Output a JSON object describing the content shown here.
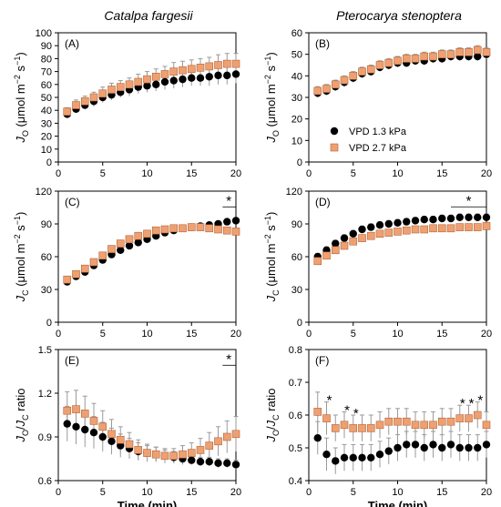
{
  "figure": {
    "column_titles": [
      "Catalpa fargesii",
      "Pterocarya stenoptera"
    ],
    "legend": {
      "entries": [
        "VPD 1.3 kPa",
        "VPD 2.7 kPa"
      ]
    },
    "colors": {
      "vpd_1_3": "#000000",
      "vpd_2_7": "#f0a070",
      "vpd_2_7_edge": "#b0653a",
      "error_bar": "#9a9a9a"
    }
  },
  "chart_data": [
    {
      "id": "A",
      "type": "scatter",
      "panel_label": "(A)",
      "species": "Catalpa fargesii",
      "ylabel": "J_O (μmol m⁻² s⁻¹)",
      "ylabel_parts": {
        "sym": "J",
        "sub": "O",
        "unit": "(μmol m",
        "exp1": "−2",
        "mid": " s",
        "exp2": "−1",
        "end": ")"
      },
      "xlabel": "",
      "xlim": [
        0,
        20
      ],
      "ylim": [
        0,
        100
      ],
      "xticks": [
        0,
        5,
        10,
        15,
        20
      ],
      "yticks": [
        0,
        10,
        20,
        30,
        40,
        50,
        60,
        70,
        80,
        90,
        100
      ],
      "show_legend": false,
      "x": [
        1,
        2,
        3,
        4,
        5,
        6,
        7,
        8,
        9,
        10,
        11,
        12,
        13,
        14,
        15,
        16,
        17,
        18,
        19,
        20
      ],
      "series": [
        {
          "name": "VPD 1.3 kPa",
          "marker": "circle",
          "values": [
            37,
            41,
            44,
            47,
            50,
            52,
            54,
            56,
            58,
            59,
            60,
            62,
            63,
            64,
            65,
            65,
            66,
            67,
            67,
            68
          ],
          "errors": [
            3,
            3,
            3,
            4,
            4,
            4,
            4,
            5,
            5,
            5,
            5,
            6,
            6,
            6,
            6,
            6,
            7,
            7,
            7,
            7
          ]
        },
        {
          "name": "VPD 2.7 kPa",
          "marker": "square",
          "values": [
            39,
            44,
            47,
            50,
            53,
            56,
            58,
            60,
            62,
            64,
            66,
            68,
            70,
            71,
            72,
            73,
            74,
            75,
            76,
            76
          ],
          "errors": [
            3,
            4,
            4,
            4,
            5,
            5,
            5,
            5,
            6,
            6,
            6,
            6,
            7,
            7,
            7,
            7,
            7,
            8,
            8,
            8
          ]
        }
      ],
      "significance": []
    },
    {
      "id": "B",
      "type": "scatter",
      "panel_label": "(B)",
      "species": "Pterocarya stenoptera",
      "ylabel": "J_O (μmol m⁻² s⁻¹)",
      "ylabel_parts": {
        "sym": "J",
        "sub": "O",
        "unit": "(μmol m",
        "exp1": "−2",
        "mid": " s",
        "exp2": "−1",
        "end": ")"
      },
      "xlabel": "",
      "xlim": [
        0,
        20
      ],
      "ylim": [
        0,
        60
      ],
      "xticks": [
        0,
        5,
        10,
        15,
        20
      ],
      "yticks": [
        0,
        10,
        20,
        30,
        40,
        50,
        60
      ],
      "show_legend": true,
      "x": [
        1,
        2,
        3,
        4,
        5,
        6,
        7,
        8,
        9,
        10,
        11,
        12,
        13,
        14,
        15,
        16,
        17,
        18,
        19,
        20
      ],
      "series": [
        {
          "name": "VPD 1.3 kPa",
          "marker": "circle",
          "values": [
            32,
            33,
            35,
            37,
            39,
            41,
            42,
            44,
            45,
            46,
            46,
            47,
            47,
            48,
            48,
            49,
            49,
            49,
            49,
            50
          ],
          "errors": [
            2,
            2,
            2,
            2,
            2,
            2,
            2,
            2,
            2,
            2,
            2,
            2,
            2,
            2,
            2,
            2,
            2,
            2,
            2,
            2
          ]
        },
        {
          "name": "VPD 2.7 kPa",
          "marker": "square",
          "values": [
            33,
            34,
            36,
            38,
            40,
            42,
            43,
            45,
            46,
            47,
            48,
            48,
            49,
            49,
            50,
            50,
            51,
            51,
            52,
            51
          ],
          "errors": [
            2,
            2,
            2,
            2,
            2,
            2,
            2,
            2,
            2,
            2,
            2,
            2,
            2,
            2,
            2,
            2,
            2,
            2,
            2,
            2
          ]
        }
      ],
      "significance": []
    },
    {
      "id": "C",
      "type": "scatter",
      "panel_label": "(C)",
      "species": "Catalpa fargesii",
      "ylabel": "J_C (μmol m⁻² s⁻¹)",
      "ylabel_parts": {
        "sym": "J",
        "sub": "C",
        "unit": "(μmol m",
        "exp1": "−2",
        "mid": " s",
        "exp2": "−1",
        "end": ")"
      },
      "xlabel": "",
      "xlim": [
        0,
        20
      ],
      "ylim": [
        0,
        120
      ],
      "xticks": [
        0,
        5,
        10,
        15,
        20
      ],
      "yticks": [
        0,
        30,
        60,
        90,
        120
      ],
      "show_legend": false,
      "x": [
        1,
        2,
        3,
        4,
        5,
        6,
        7,
        8,
        9,
        10,
        11,
        12,
        13,
        14,
        15,
        16,
        17,
        18,
        19,
        20
      ],
      "series": [
        {
          "name": "VPD 1.3 kPa",
          "marker": "circle",
          "values": [
            37,
            42,
            46,
            52,
            57,
            62,
            66,
            70,
            73,
            76,
            79,
            82,
            84,
            86,
            87,
            88,
            89,
            90,
            92,
            93
          ],
          "errors": [
            2,
            2,
            2,
            2,
            2,
            2,
            2,
            2,
            2,
            2,
            2,
            2,
            2,
            2,
            2,
            2,
            2,
            2,
            2,
            2
          ]
        },
        {
          "name": "VPD 2.7 kPa",
          "marker": "square",
          "values": [
            39,
            44,
            49,
            55,
            61,
            67,
            72,
            76,
            79,
            81,
            84,
            85,
            86,
            86,
            87,
            87,
            86,
            85,
            84,
            83
          ],
          "errors": [
            2,
            2,
            2,
            2,
            2,
            2,
            2,
            2,
            2,
            2,
            2,
            2,
            2,
            2,
            2,
            2,
            2,
            2,
            2,
            2
          ]
        }
      ],
      "significance": [
        {
          "x_start": 18.5,
          "x_end": 20,
          "marks": [
            {
              "x": 19.2,
              "text": "*"
            }
          ]
        }
      ]
    },
    {
      "id": "D",
      "type": "scatter",
      "panel_label": "(D)",
      "species": "Pterocarya stenoptera",
      "ylabel": "J_C (μmol m⁻² s⁻¹)",
      "ylabel_parts": {
        "sym": "J",
        "sub": "C",
        "unit": "(μmol m",
        "exp1": "−2",
        "mid": " s",
        "exp2": "−1",
        "end": ")"
      },
      "xlabel": "",
      "xlim": [
        0,
        20
      ],
      "ylim": [
        0,
        120
      ],
      "xticks": [
        0,
        5,
        10,
        15,
        20
      ],
      "yticks": [
        0,
        30,
        60,
        90,
        120
      ],
      "show_legend": false,
      "x": [
        1,
        2,
        3,
        4,
        5,
        6,
        7,
        8,
        9,
        10,
        11,
        12,
        13,
        14,
        15,
        16,
        17,
        18,
        19,
        20
      ],
      "series": [
        {
          "name": "VPD 1.3 kPa",
          "marker": "circle",
          "values": [
            60,
            66,
            72,
            77,
            81,
            85,
            87,
            89,
            90,
            91,
            92,
            93,
            94,
            94,
            95,
            95,
            96,
            96,
            96,
            96
          ],
          "errors": [
            3,
            3,
            3,
            3,
            3,
            3,
            3,
            3,
            3,
            3,
            3,
            3,
            3,
            3,
            3,
            3,
            3,
            3,
            3,
            3
          ]
        },
        {
          "name": "VPD 2.7 kPa",
          "marker": "square",
          "values": [
            56,
            61,
            66,
            70,
            74,
            77,
            79,
            81,
            82,
            83,
            84,
            85,
            85,
            86,
            86,
            86,
            87,
            87,
            87,
            88
          ],
          "errors": [
            2,
            2,
            2,
            2,
            2,
            2,
            2,
            2,
            2,
            2,
            2,
            2,
            2,
            2,
            2,
            2,
            2,
            2,
            2,
            2
          ]
        }
      ],
      "significance": [
        {
          "x_start": 16,
          "x_end": 20,
          "marks": [
            {
              "x": 18,
              "text": "*"
            }
          ]
        }
      ]
    },
    {
      "id": "E",
      "type": "scatter",
      "panel_label": "(E)",
      "species": "Catalpa fargesii",
      "ylabel": "J_O/J_C ratio",
      "ylabel_parts": {
        "sym": "J",
        "sub": "O",
        "slash": "/",
        "sym2": "J",
        "sub2": "C",
        "tail": " ratio"
      },
      "xlabel": "Time (min)",
      "xlim": [
        0,
        20
      ],
      "ylim": [
        0.6,
        1.5
      ],
      "xticks": [
        0,
        5,
        10,
        15,
        20
      ],
      "yticks": [
        0.6,
        0.9,
        1.2,
        1.5
      ],
      "show_legend": false,
      "x": [
        1,
        2,
        3,
        4,
        5,
        6,
        7,
        8,
        9,
        10,
        11,
        12,
        13,
        14,
        15,
        16,
        17,
        18,
        19,
        20
      ],
      "series": [
        {
          "name": "VPD 1.3 kPa",
          "marker": "circle",
          "values": [
            0.99,
            0.97,
            0.95,
            0.93,
            0.9,
            0.87,
            0.84,
            0.82,
            0.8,
            0.79,
            0.78,
            0.77,
            0.76,
            0.75,
            0.74,
            0.73,
            0.73,
            0.72,
            0.72,
            0.71
          ],
          "errors": [
            0.12,
            0.12,
            0.12,
            0.11,
            0.1,
            0.09,
            0.08,
            0.07,
            0.06,
            0.05,
            0.05,
            0.04,
            0.04,
            0.04,
            0.03,
            0.03,
            0.03,
            0.03,
            0.03,
            0.03
          ]
        },
        {
          "name": "VPD 2.7 kPa",
          "marker": "square",
          "values": [
            1.08,
            1.09,
            1.06,
            1.01,
            0.97,
            0.92,
            0.88,
            0.85,
            0.81,
            0.79,
            0.78,
            0.77,
            0.77,
            0.78,
            0.79,
            0.81,
            0.84,
            0.87,
            0.9,
            0.92
          ],
          "errors": [
            0.13,
            0.13,
            0.12,
            0.12,
            0.11,
            0.1,
            0.09,
            0.08,
            0.07,
            0.06,
            0.05,
            0.05,
            0.05,
            0.06,
            0.07,
            0.08,
            0.09,
            0.1,
            0.11,
            0.12
          ]
        }
      ],
      "significance": [
        {
          "x_start": 18.5,
          "x_end": 20,
          "marks": [
            {
              "x": 19.2,
              "text": "*"
            }
          ]
        }
      ]
    },
    {
      "id": "F",
      "type": "scatter",
      "panel_label": "(F)",
      "species": "Pterocarya stenoptera",
      "ylabel": "J_O/J_C ratio",
      "ylabel_parts": {
        "sym": "J",
        "sub": "O",
        "slash": "/",
        "sym2": "J",
        "sub2": "C",
        "tail": " ratio"
      },
      "xlabel": "Time (min)",
      "xlim": [
        0,
        20
      ],
      "ylim": [
        0.4,
        0.8
      ],
      "xticks": [
        0,
        5,
        10,
        15,
        20
      ],
      "yticks": [
        0.4,
        0.5,
        0.6,
        0.7,
        0.8
      ],
      "show_legend": false,
      "x": [
        1,
        2,
        3,
        4,
        5,
        6,
        7,
        8,
        9,
        10,
        11,
        12,
        13,
        14,
        15,
        16,
        17,
        18,
        19,
        20
      ],
      "series": [
        {
          "name": "VPD 1.3 kPa",
          "marker": "circle",
          "values": [
            0.53,
            0.48,
            0.46,
            0.47,
            0.47,
            0.47,
            0.47,
            0.48,
            0.49,
            0.5,
            0.51,
            0.51,
            0.5,
            0.51,
            0.5,
            0.51,
            0.5,
            0.5,
            0.5,
            0.51
          ],
          "errors": [
            0.05,
            0.05,
            0.04,
            0.04,
            0.04,
            0.04,
            0.04,
            0.04,
            0.04,
            0.04,
            0.04,
            0.04,
            0.04,
            0.04,
            0.04,
            0.04,
            0.04,
            0.04,
            0.04,
            0.04
          ]
        },
        {
          "name": "VPD 2.7 kPa",
          "marker": "square",
          "values": [
            0.61,
            0.59,
            0.56,
            0.57,
            0.56,
            0.56,
            0.56,
            0.57,
            0.58,
            0.58,
            0.58,
            0.57,
            0.57,
            0.57,
            0.58,
            0.58,
            0.59,
            0.59,
            0.6,
            0.57
          ],
          "errors": [
            0.06,
            0.05,
            0.04,
            0.04,
            0.04,
            0.04,
            0.04,
            0.04,
            0.04,
            0.04,
            0.04,
            0.04,
            0.04,
            0.04,
            0.04,
            0.04,
            0.04,
            0.04,
            0.04,
            0.04
          ]
        }
      ],
      "significance": [
        {
          "x_start": null,
          "x_end": null,
          "marks": [
            {
              "x": 2,
              "text": "*"
            },
            {
              "x": 4,
              "text": "*"
            },
            {
              "x": 5,
              "text": "*"
            },
            {
              "x": 17,
              "text": "*"
            },
            {
              "x": 18,
              "text": "*"
            },
            {
              "x": 19,
              "text": "*"
            }
          ]
        }
      ]
    }
  ]
}
